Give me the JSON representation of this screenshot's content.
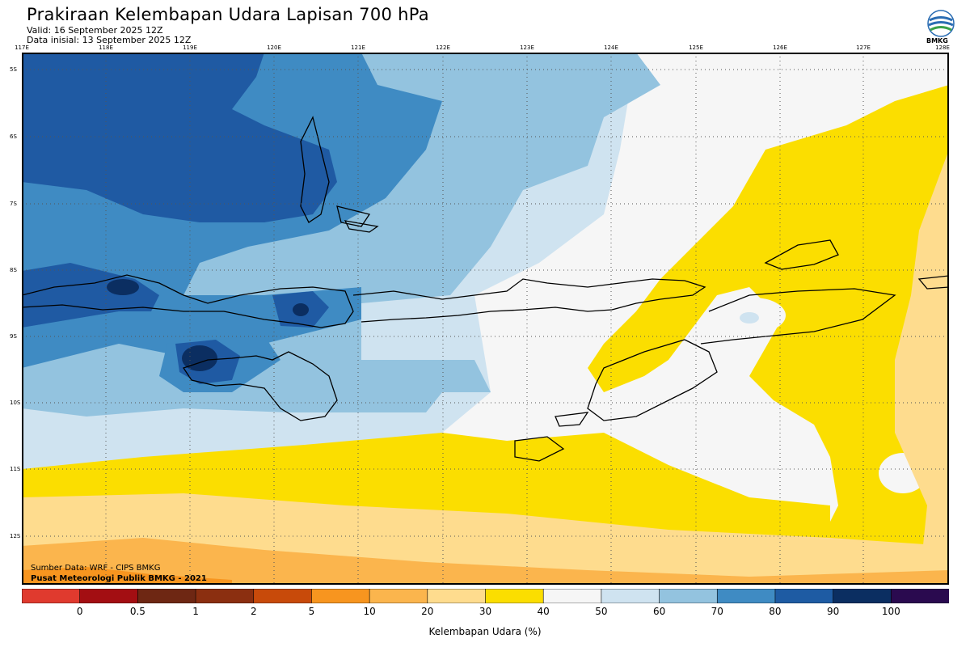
{
  "header": {
    "title": "Prakiraan Kelembapan Udara Lapisan 700 hPa",
    "valid": "Valid: 16 September 2025 12Z",
    "initial": "Data inisial: 13 September 2025 12Z"
  },
  "logo": {
    "icon": "bmkg-logo-icon",
    "text": "BMKG"
  },
  "axes": {
    "lon_labels": [
      "117E",
      "118E",
      "119E",
      "120E",
      "121E",
      "122E",
      "123E",
      "124E",
      "125E",
      "126E",
      "127E",
      "128E"
    ],
    "lat_labels": [
      "5S",
      "6S",
      "7S",
      "8S",
      "9S",
      "10S",
      "11S",
      "12S"
    ]
  },
  "credits": {
    "source": "Sumber Data: WRF - CIPS BMKG",
    "producer": "Pusat Meteorologi Publik BMKG - 2021"
  },
  "colorbar": {
    "title": "Kelembapan Udara (%)",
    "tick_labels": [
      "0",
      "0.5",
      "1",
      "2",
      "5",
      "10",
      "20",
      "30",
      "40",
      "50",
      "60",
      "70",
      "80",
      "90",
      "100"
    ],
    "colors": [
      "#e03a2e",
      "#a30e12",
      "#6e2713",
      "#8b2f10",
      "#c84a0a",
      "#f7951f",
      "#fbb54d",
      "#fedc8e",
      "#fbde00",
      "#f6f6f6",
      "#cfe3f0",
      "#93c3df",
      "#3f8bc3",
      "#1e5ba3",
      "#0b2e61",
      "#2a0a4f"
    ]
  },
  "colors": {
    "deep_blue": "#1f5aa3",
    "mid_blue": "#3f8bc3",
    "light_blue": "#93c3df",
    "pale_blue": "#cfe3f0",
    "near_white": "#f6f6f6",
    "yellow": "#fbde00",
    "light_orange": "#fedc8e",
    "orange": "#fbb54d",
    "dark_navy": "#0b2e61"
  }
}
